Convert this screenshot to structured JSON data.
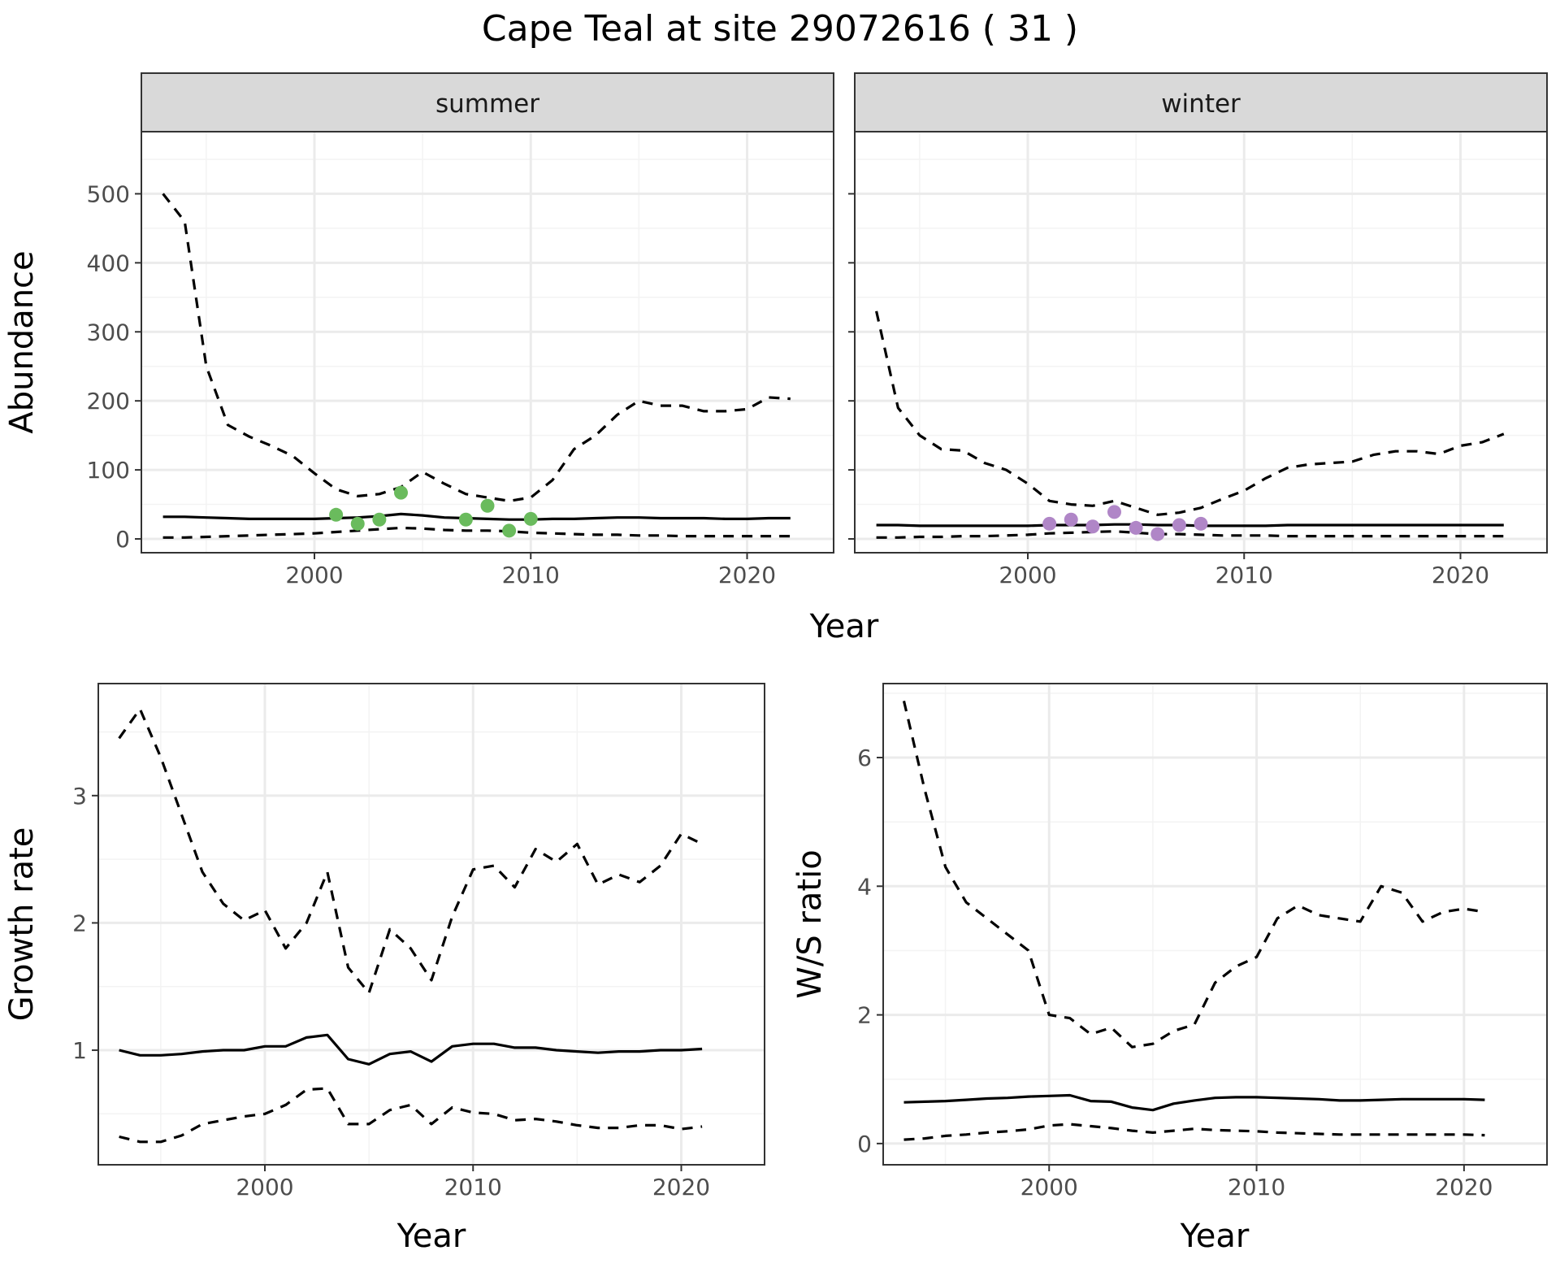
{
  "figure_title": "Cape Teal at site 29072616 ( 31 )",
  "colors": {
    "summer_points": "#6ABB5D",
    "winter_points": "#B086C7"
  },
  "chart_data": [
    {
      "id": "abundance-summer",
      "type": "line",
      "facet": "summer",
      "xlabel": "",
      "ylabel": "Abundance",
      "xlim": [
        1992,
        2024
      ],
      "ylim": [
        -20,
        590
      ],
      "xticks": [
        2000,
        2010,
        2020
      ],
      "yticks": [
        0,
        100,
        200,
        300,
        400,
        500
      ],
      "grid": true,
      "x": [
        1993,
        1994,
        1995,
        1996,
        1997,
        1998,
        1999,
        2000,
        2001,
        2002,
        2003,
        2004,
        2005,
        2006,
        2007,
        2008,
        2009,
        2010,
        2011,
        2012,
        2013,
        2014,
        2015,
        2016,
        2017,
        2018,
        2019,
        2020,
        2021,
        2022
      ],
      "series": [
        {
          "role": "upper",
          "style": "dashed",
          "values": [
            500,
            460,
            250,
            165,
            148,
            135,
            120,
            95,
            72,
            62,
            65,
            75,
            97,
            80,
            65,
            60,
            55,
            60,
            85,
            130,
            150,
            180,
            200,
            193,
            193,
            185,
            185,
            188,
            205,
            203
          ]
        },
        {
          "role": "estimate",
          "style": "solid",
          "values": [
            32,
            32,
            31,
            30,
            29,
            29,
            29,
            29,
            30,
            31,
            33,
            36,
            34,
            31,
            30,
            29,
            28,
            28,
            29,
            29,
            30,
            31,
            31,
            30,
            30,
            30,
            29,
            29,
            30,
            30
          ]
        },
        {
          "role": "lower",
          "style": "dashed",
          "values": [
            2,
            2,
            3,
            4,
            5,
            6,
            7,
            8,
            10,
            12,
            14,
            16,
            15,
            13,
            12,
            12,
            11,
            9,
            8,
            7,
            6,
            6,
            5,
            5,
            4,
            4,
            4,
            4,
            4,
            4
          ]
        }
      ],
      "points": {
        "x": [
          2001,
          2002,
          2003,
          2004,
          2007,
          2008,
          2009,
          2010
        ],
        "y": [
          35,
          22,
          28,
          67,
          28,
          48,
          12,
          29
        ],
        "color": "#6ABB5D"
      }
    },
    {
      "id": "abundance-winter",
      "type": "line",
      "facet": "winter",
      "xlabel": "",
      "ylabel": "",
      "xlim": [
        1992,
        2024
      ],
      "ylim": [
        -20,
        590
      ],
      "xticks": [
        2000,
        2010,
        2020
      ],
      "yticks": [
        0,
        100,
        200,
        300,
        400,
        500
      ],
      "grid": true,
      "x": [
        1993,
        1994,
        1995,
        1996,
        1997,
        1998,
        1999,
        2000,
        2001,
        2002,
        2003,
        2004,
        2005,
        2006,
        2007,
        2008,
        2009,
        2010,
        2011,
        2012,
        2013,
        2014,
        2015,
        2016,
        2017,
        2018,
        2019,
        2020,
        2021,
        2022
      ],
      "series": [
        {
          "role": "upper",
          "style": "dashed",
          "values": [
            330,
            190,
            150,
            130,
            128,
            110,
            100,
            80,
            55,
            50,
            48,
            55,
            45,
            35,
            38,
            45,
            58,
            70,
            88,
            103,
            108,
            110,
            112,
            122,
            127,
            127,
            123,
            135,
            140,
            152
          ]
        },
        {
          "role": "estimate",
          "style": "solid",
          "values": [
            20,
            20,
            19,
            19,
            19,
            19,
            19,
            19,
            20,
            20,
            20,
            21,
            21,
            20,
            20,
            19,
            19,
            19,
            19,
            20,
            20,
            20,
            20,
            20,
            20,
            20,
            20,
            20,
            20,
            20
          ]
        },
        {
          "role": "lower",
          "style": "dashed",
          "values": [
            2,
            2,
            3,
            3,
            4,
            4,
            5,
            6,
            8,
            9,
            10,
            11,
            9,
            7,
            7,
            6,
            5,
            5,
            5,
            4,
            4,
            4,
            4,
            4,
            4,
            4,
            4,
            4,
            4,
            4
          ]
        }
      ],
      "points": {
        "x": [
          2001,
          2002,
          2003,
          2004,
          2005,
          2006,
          2007,
          2008
        ],
        "y": [
          22,
          28,
          18,
          39,
          16,
          7,
          20,
          22
        ],
        "color": "#B086C7"
      }
    },
    {
      "id": "growth-rate",
      "type": "line",
      "xlabel": "Year",
      "ylabel": "Growth rate",
      "xlim": [
        1992,
        2024
      ],
      "ylim": [
        0.1,
        3.88
      ],
      "xticks": [
        2000,
        2010,
        2020
      ],
      "yticks": [
        1,
        2,
        3
      ],
      "grid": true,
      "x": [
        1993,
        1994,
        1995,
        1996,
        1997,
        1998,
        1999,
        2000,
        2001,
        2002,
        2003,
        2004,
        2005,
        2006,
        2007,
        2008,
        2009,
        2010,
        2011,
        2012,
        2013,
        2014,
        2015,
        2016,
        2017,
        2018,
        2019,
        2020,
        2021
      ],
      "series": [
        {
          "role": "upper",
          "style": "dashed",
          "values": [
            3.45,
            3.68,
            3.3,
            2.85,
            2.4,
            2.15,
            2.02,
            2.1,
            1.8,
            2.0,
            2.4,
            1.65,
            1.45,
            1.95,
            1.8,
            1.55,
            2.05,
            2.42,
            2.45,
            2.28,
            2.58,
            2.48,
            2.62,
            2.3,
            2.38,
            2.32,
            2.45,
            2.7,
            2.62
          ]
        },
        {
          "role": "estimate",
          "style": "solid",
          "values": [
            1.0,
            0.96,
            0.96,
            0.97,
            0.99,
            1.0,
            1.0,
            1.03,
            1.03,
            1.1,
            1.12,
            0.93,
            0.89,
            0.97,
            0.99,
            0.91,
            1.03,
            1.05,
            1.05,
            1.02,
            1.02,
            1.0,
            0.99,
            0.98,
            0.99,
            0.99,
            1.0,
            1.0,
            1.01
          ]
        },
        {
          "role": "lower",
          "style": "dashed",
          "values": [
            0.32,
            0.28,
            0.28,
            0.33,
            0.42,
            0.45,
            0.48,
            0.5,
            0.57,
            0.69,
            0.7,
            0.42,
            0.42,
            0.53,
            0.57,
            0.42,
            0.55,
            0.51,
            0.5,
            0.45,
            0.46,
            0.44,
            0.41,
            0.39,
            0.39,
            0.41,
            0.41,
            0.38,
            0.4
          ]
        }
      ]
    },
    {
      "id": "ws-ratio",
      "type": "line",
      "xlabel": "Year",
      "ylabel": "W/S ratio",
      "xlim": [
        1992,
        2024
      ],
      "ylim": [
        -0.33,
        7.15
      ],
      "xticks": [
        2000,
        2010,
        2020
      ],
      "yticks": [
        0,
        2,
        4,
        6
      ],
      "grid": true,
      "x": [
        1993,
        1994,
        1995,
        1996,
        1997,
        1998,
        1999,
        2000,
        2001,
        2002,
        2003,
        2004,
        2005,
        2006,
        2007,
        2008,
        2009,
        2010,
        2011,
        2012,
        2013,
        2014,
        2015,
        2016,
        2017,
        2018,
        2019,
        2020,
        2021
      ],
      "series": [
        {
          "role": "upper",
          "style": "dashed",
          "values": [
            6.88,
            5.5,
            4.3,
            3.75,
            3.5,
            3.25,
            3.0,
            2.0,
            1.95,
            1.7,
            1.8,
            1.5,
            1.55,
            1.75,
            1.85,
            2.5,
            2.75,
            2.9,
            3.5,
            3.7,
            3.55,
            3.5,
            3.45,
            4.0,
            3.9,
            3.45,
            3.6,
            3.65,
            3.6
          ]
        },
        {
          "role": "estimate",
          "style": "solid",
          "values": [
            0.64,
            0.65,
            0.66,
            0.68,
            0.7,
            0.71,
            0.73,
            0.74,
            0.75,
            0.66,
            0.65,
            0.56,
            0.52,
            0.62,
            0.67,
            0.71,
            0.72,
            0.72,
            0.71,
            0.7,
            0.69,
            0.67,
            0.67,
            0.68,
            0.69,
            0.69,
            0.69,
            0.69,
            0.68
          ]
        },
        {
          "role": "lower",
          "style": "dashed",
          "values": [
            0.06,
            0.08,
            0.12,
            0.14,
            0.17,
            0.19,
            0.22,
            0.28,
            0.3,
            0.27,
            0.24,
            0.2,
            0.17,
            0.2,
            0.23,
            0.21,
            0.2,
            0.19,
            0.17,
            0.16,
            0.15,
            0.14,
            0.14,
            0.14,
            0.14,
            0.14,
            0.14,
            0.14,
            0.13
          ]
        }
      ]
    }
  ]
}
